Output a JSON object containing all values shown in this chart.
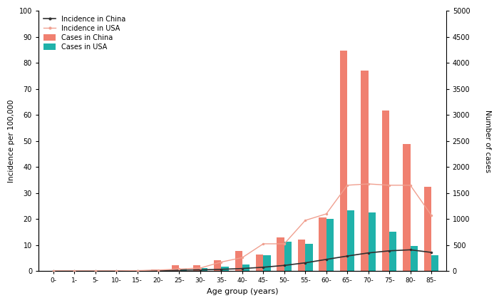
{
  "age_groups": [
    "0-",
    "1-",
    "5-",
    "10-",
    "15-",
    "20-",
    "25-",
    "30-",
    "35-",
    "40-",
    "45-",
    "50-",
    "55-",
    "60-",
    "65-",
    "70-",
    "75-",
    "80-",
    "85-"
  ],
  "cases_china": [
    5,
    5,
    5,
    5,
    15,
    30,
    120,
    110,
    210,
    390,
    320,
    650,
    610,
    1030,
    4230,
    3850,
    3090,
    2440,
    1620
  ],
  "cases_usa": [
    5,
    5,
    5,
    5,
    10,
    20,
    50,
    60,
    90,
    130,
    300,
    560,
    530,
    1000,
    1170,
    1130,
    760,
    490,
    310
  ],
  "incidence_china": [
    0.05,
    0.05,
    0.05,
    0.05,
    0.1,
    0.2,
    0.4,
    0.5,
    0.7,
    1.0,
    1.5,
    2.2,
    3.2,
    4.5,
    5.8,
    7.0,
    7.8,
    8.2,
    7.2
  ],
  "incidence_usa": [
    0.1,
    0.1,
    0.1,
    0.1,
    0.2,
    0.4,
    0.8,
    1.2,
    3.5,
    5.2,
    10.5,
    10.5,
    19.5,
    22.0,
    33.0,
    33.5,
    33.0,
    33.0,
    21.5
  ],
  "bar_color_china": "#f08070",
  "bar_color_usa": "#20b2aa",
  "line_color_china": "#303030",
  "line_color_usa": "#f0a090",
  "ylabel_left": "Incidence per 100,000",
  "ylabel_right": "Number of cases",
  "xlabel": "Age group (years)",
  "ylim_left": [
    0,
    100
  ],
  "ylim_right": [
    0,
    5000
  ],
  "yticks_left": [
    0,
    10,
    20,
    30,
    40,
    50,
    60,
    70,
    80,
    90,
    100
  ],
  "yticks_right": [
    0,
    500,
    1000,
    1500,
    2000,
    2500,
    3000,
    3500,
    4000,
    4500,
    5000
  ],
  "legend_labels": [
    "Incidence in China",
    "Incidence in USA",
    "Cases in China",
    "Cases in USA"
  ],
  "bar_width": 0.35,
  "figsize": [
    7.0,
    4.25
  ],
  "dpi": 100
}
